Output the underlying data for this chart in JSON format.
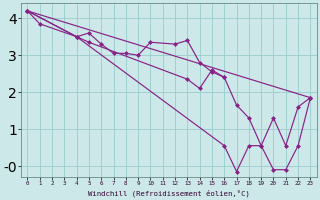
{
  "xlabel": "Windchill (Refroidissement éolien,°C)",
  "background_color": "#cce8e8",
  "line_color": "#882288",
  "grid_color": "#99cccc",
  "ylim": [
    -0.3,
    4.4
  ],
  "xlim": [
    -0.5,
    23.5
  ],
  "yticks": [
    0,
    1,
    2,
    3,
    4
  ],
  "ytick_labels": [
    "-0",
    "1",
    "2",
    "3",
    "4"
  ],
  "xticks": [
    0,
    1,
    2,
    3,
    4,
    5,
    6,
    7,
    8,
    9,
    10,
    11,
    12,
    13,
    14,
    15,
    16,
    17,
    18,
    19,
    20,
    21,
    22,
    23
  ],
  "line1_x": [
    0,
    1,
    4,
    5,
    6,
    7,
    8,
    9,
    10,
    12,
    13,
    14,
    15,
    16
  ],
  "line1_y": [
    4.2,
    3.85,
    3.5,
    3.6,
    3.3,
    3.05,
    3.05,
    3.0,
    3.35,
    3.3,
    3.4,
    2.8,
    2.55,
    2.4
  ],
  "line2_x": [
    0,
    4,
    5,
    13,
    14,
    15,
    16,
    17,
    18,
    19,
    20,
    21,
    22,
    23
  ],
  "line2_y": [
    4.2,
    3.5,
    3.35,
    2.35,
    2.1,
    2.6,
    2.4,
    1.65,
    1.3,
    0.55,
    1.3,
    0.55,
    1.6,
    1.85
  ],
  "line3_x": [
    0,
    4,
    16,
    17,
    18,
    19,
    20,
    21,
    22,
    23
  ],
  "line3_y": [
    4.2,
    3.5,
    0.55,
    -0.15,
    0.55,
    0.55,
    -0.1,
    -0.1,
    0.55,
    1.85
  ],
  "line4_x": [
    0,
    23
  ],
  "line4_y": [
    4.2,
    1.85
  ]
}
